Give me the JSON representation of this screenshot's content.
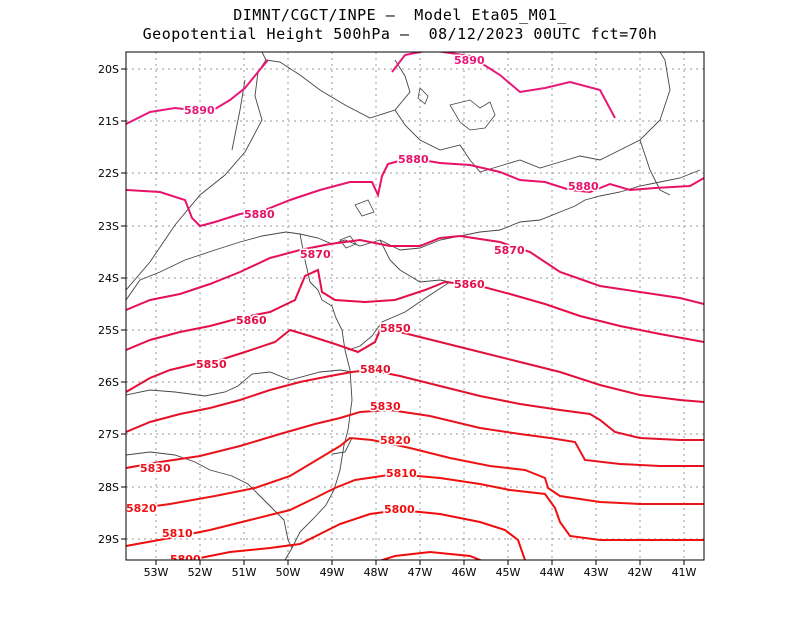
{
  "header": {
    "line1": "DIMNT/CGCT/INPE –  Model Eta05_M01_",
    "line2": "Geopotential Height 500hPa –  08/12/2023 00UTC fct=70h"
  },
  "axes": {
    "lon_ticks": [
      "53W",
      "52W",
      "51W",
      "50W",
      "49W",
      "48W",
      "47W",
      "46W",
      "45W",
      "44W",
      "43W",
      "42W",
      "41W"
    ],
    "lat_ticks": [
      "20S",
      "21S",
      "22S",
      "23S",
      "24S",
      "25S",
      "26S",
      "27S",
      "28S",
      "29S"
    ]
  },
  "contour_labels": [
    {
      "text": "5890",
      "id": "c5890-east"
    },
    {
      "text": "5890",
      "id": "c5890-west"
    },
    {
      "text": "5880",
      "id": "c5880-center"
    },
    {
      "text": "5880",
      "id": "c5880-east"
    },
    {
      "text": "5880",
      "id": "c5880-west"
    },
    {
      "text": "5870",
      "id": "c5870-west"
    },
    {
      "text": "5870",
      "id": "c5870-east"
    },
    {
      "text": "5860",
      "id": "c5860-east"
    },
    {
      "text": "5860",
      "id": "c5860-west"
    },
    {
      "text": "5850",
      "id": "c5850-east"
    },
    {
      "text": "5850",
      "id": "c5850-west"
    },
    {
      "text": "5840",
      "id": "c5840"
    },
    {
      "text": "5830",
      "id": "c5830-east"
    },
    {
      "text": "5830",
      "id": "c5830-west"
    },
    {
      "text": "5820",
      "id": "c5820-east"
    },
    {
      "text": "5820",
      "id": "c5820-west"
    },
    {
      "text": "5810",
      "id": "c5810-east"
    },
    {
      "text": "5810",
      "id": "c5810-west"
    },
    {
      "text": "5800",
      "id": "c5800-east"
    },
    {
      "text": "5800",
      "id": "c5800-west"
    }
  ],
  "colors": {
    "c5890": "#e8177a",
    "c5880": "#e8126a",
    "c5870": "#e4105a",
    "c5860": "#e40f48",
    "c5850": "#e40f3a",
    "c5840": "#e5102a",
    "c5830": "#e8121e",
    "c5820": "#ec1414",
    "c5810": "#ef1010",
    "c5800": "#f00c0c",
    "border": "#444444",
    "grid": "#9a9a9a"
  }
}
